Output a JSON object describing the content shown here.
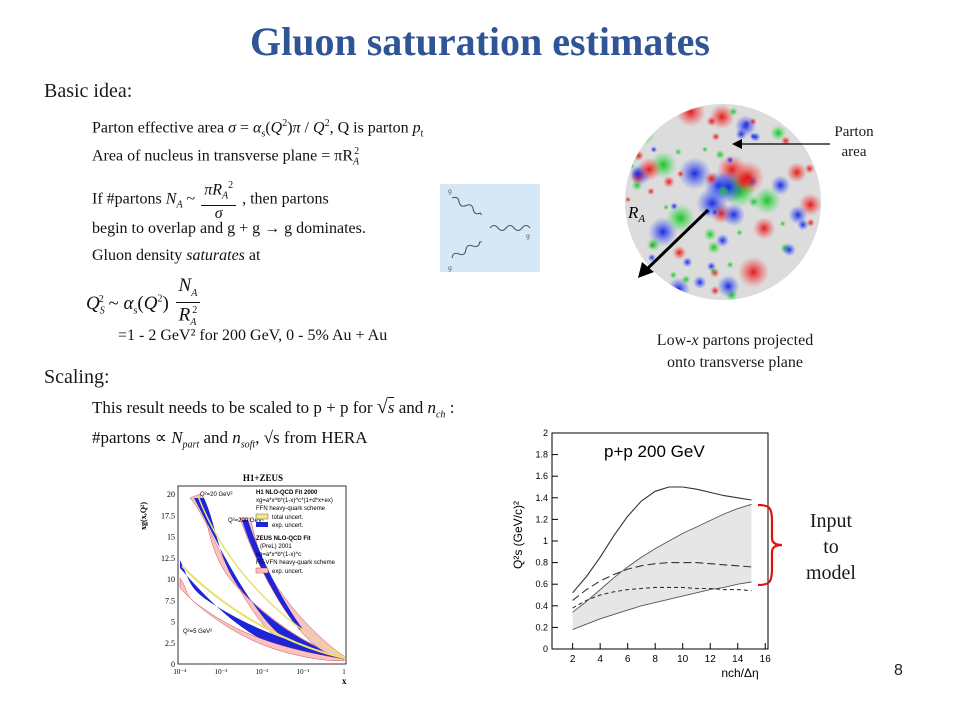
{
  "slide": {
    "title": "Gluon saturation estimates",
    "page_number": "8"
  },
  "basic_idea": {
    "label": "Basic idea:",
    "line1_a": "Parton effective area ",
    "line1_b": ", Q is parton ",
    "line2": "Area of nucleus in transverse plane = πR",
    "line3_a": "If #partons  ",
    "line3_b": " , then partons",
    "line4": "begin to overlap and g + g → g dominates.",
    "line5_a": "Gluon density ",
    "line5_italic": "saturates",
    "line5_b": " at",
    "line7": "=1 - 2 GeV² for 200 GeV, 0 - 5% Au + Au"
  },
  "scaling": {
    "label": "Scaling:",
    "line1_a": "This result needs to be scaled to p + p for ",
    "line1_b": " and ",
    "line2_a": "#partons ∝ ",
    "line2_b": " and ",
    "line2_c": ", √s from HERA"
  },
  "nucleus": {
    "radius_label": "R",
    "radius_sub": "A",
    "callout_line1": "Parton",
    "callout_line2": "area",
    "caption_line1_a": "Low-",
    "caption_line1_italic": "x",
    "caption_line1_b": " partons projected",
    "caption_line2": "onto transverse plane"
  },
  "hera_plot": {
    "title": "H1+ZEUS",
    "ylabel": "xg(x,Q²)",
    "xlabel": "x",
    "y_ticks": [
      "0",
      "2.5",
      "5",
      "7.5",
      "10",
      "12.5",
      "15",
      "17.5",
      "20"
    ],
    "x_ticks": [
      "10⁻⁴",
      "10⁻³",
      "10⁻²",
      "10⁻¹",
      "1"
    ],
    "legend": {
      "h1_title": "H1 NLO-QCD Fit 2000",
      "h1_param": "xg=a*x^b*(1-x)^c*(1+d*x+ex)",
      "h1_scheme": "FFN heavy-quark scheme",
      "total_uncert": "total uncert.",
      "exp_uncert": "exp. uncert.",
      "zeus_title": "ZEUS NLO-QCD Fit",
      "zeus_sub": "(PreL) 2001",
      "zeus_param": "xg=a*x^b*(1-x)^c",
      "zeus_scheme": "RT-VFN heavy-quark scheme",
      "zeus_exp": "exp. uncert."
    },
    "q2_labels": [
      "Q²=20 GeV²",
      "Q²=200 GeV²",
      "Q²=5 GeV²"
    ]
  },
  "chart_data": {
    "type": "line",
    "title": "p+p 200 GeV",
    "xlabel": "nch/Δη",
    "ylabel": "Q²s (GeV/c)²",
    "xlim": [
      0.5,
      16.2
    ],
    "ylim": [
      0,
      2
    ],
    "x_ticks": [
      "2",
      "4",
      "6",
      "8",
      "10",
      "12",
      "14",
      "16"
    ],
    "y_ticks": [
      "0",
      "0.2",
      "0.4",
      "0.6",
      "0.8",
      "1",
      "1.2",
      "1.4",
      "1.6",
      "1.8",
      "2"
    ],
    "x": [
      2,
      3,
      4,
      5,
      6,
      7,
      8,
      9,
      10,
      11,
      12,
      13,
      14,
      15
    ],
    "series": [
      {
        "values": [
          0.52,
          0.67,
          0.85,
          1.05,
          1.23,
          1.37,
          1.46,
          1.5,
          1.5,
          1.48,
          1.45,
          1.42,
          1.4,
          1.38
        ]
      },
      {
        "values": [
          0.45,
          0.55,
          0.63,
          0.69,
          0.74,
          0.77,
          0.79,
          0.8,
          0.8,
          0.8,
          0.79,
          0.78,
          0.77,
          0.76
        ]
      },
      {
        "values": [
          0.38,
          0.45,
          0.5,
          0.53,
          0.55,
          0.56,
          0.57,
          0.57,
          0.57,
          0.56,
          0.56,
          0.55,
          0.55,
          0.54
        ]
      },
      {
        "values": [
          0.34,
          0.44,
          0.55,
          0.66,
          0.76,
          0.85,
          0.93,
          1.0,
          1.07,
          1.13,
          1.19,
          1.25,
          1.3,
          1.34
        ]
      },
      {
        "values": [
          0.18,
          0.23,
          0.28,
          0.32,
          0.36,
          0.4,
          0.43,
          0.46,
          0.49,
          0.52,
          0.55,
          0.57,
          0.6,
          0.62
        ]
      }
    ],
    "grid": false,
    "annotation": "Input to model"
  },
  "annotation_note": {
    "line1": "Input",
    "line2": "to",
    "line3": "model"
  },
  "colors": {
    "title": "#2f5597",
    "arrow": "#000000"
  }
}
